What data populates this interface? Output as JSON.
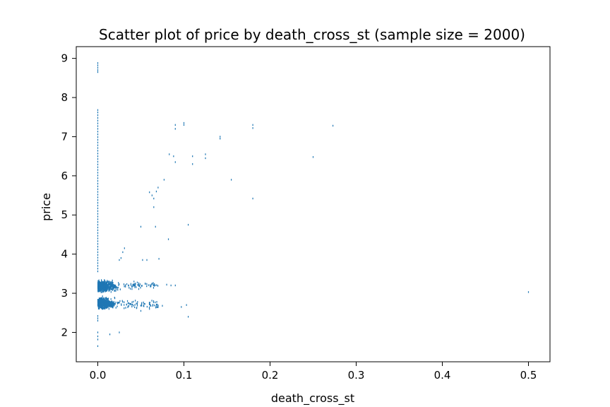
{
  "chart_data": {
    "type": "scatter",
    "title": "Scatter plot of price by death_cross_st (sample size = 2000)",
    "xlabel": "death_cross_st",
    "ylabel": "price",
    "xlim": [
      -0.025,
      0.525
    ],
    "ylim": [
      1.25,
      9.3
    ],
    "x_ticks": [
      0.0,
      0.1,
      0.2,
      0.3,
      0.4,
      0.5
    ],
    "x_tick_labels": [
      "0.0",
      "0.1",
      "0.2",
      "0.3",
      "0.4",
      "0.5"
    ],
    "y_ticks": [
      2,
      3,
      4,
      5,
      6,
      7,
      8,
      9
    ],
    "y_tick_labels": [
      "2",
      "3",
      "4",
      "5",
      "6",
      "7",
      "8",
      "9"
    ],
    "grid": false,
    "marker_color": "#1f77b4",
    "series": [
      {
        "values": [
          [
            0.0,
            8.88
          ],
          [
            0.0,
            8.82
          ],
          [
            0.0,
            8.76
          ],
          [
            0.0,
            8.7
          ],
          [
            0.0,
            8.65
          ],
          [
            0.0,
            7.68
          ],
          [
            0.0,
            7.62
          ],
          [
            0.0,
            7.55
          ],
          [
            0.0,
            7.48
          ],
          [
            0.0,
            7.41
          ],
          [
            0.0,
            7.34
          ],
          [
            0.0,
            7.27
          ],
          [
            0.0,
            7.2
          ],
          [
            0.0,
            7.13
          ],
          [
            0.0,
            7.06
          ],
          [
            0.0,
            6.99
          ],
          [
            0.0,
            6.92
          ],
          [
            0.0,
            6.85
          ],
          [
            0.0,
            6.78
          ],
          [
            0.0,
            6.71
          ],
          [
            0.0,
            6.64
          ],
          [
            0.0,
            6.57
          ],
          [
            0.0,
            6.5
          ],
          [
            0.0,
            6.43
          ],
          [
            0.0,
            6.36
          ],
          [
            0.0,
            6.29
          ],
          [
            0.0,
            6.22
          ],
          [
            0.0,
            6.15
          ],
          [
            0.0,
            6.08
          ],
          [
            0.0,
            6.01
          ],
          [
            0.0,
            5.94
          ],
          [
            0.0,
            5.87
          ],
          [
            0.0,
            5.8
          ],
          [
            0.0,
            5.73
          ],
          [
            0.0,
            5.66
          ],
          [
            0.0,
            5.59
          ],
          [
            0.0,
            5.52
          ],
          [
            0.0,
            5.45
          ],
          [
            0.0,
            5.38
          ],
          [
            0.0,
            5.31
          ],
          [
            0.0,
            5.24
          ],
          [
            0.0,
            5.17
          ],
          [
            0.0,
            5.1
          ],
          [
            0.0,
            5.03
          ],
          [
            0.0,
            4.96
          ],
          [
            0.0,
            4.89
          ],
          [
            0.0,
            4.82
          ],
          [
            0.0,
            4.75
          ],
          [
            0.0,
            4.68
          ],
          [
            0.0,
            4.61
          ],
          [
            0.0,
            4.54
          ],
          [
            0.0,
            4.47
          ],
          [
            0.0,
            4.4
          ],
          [
            0.0,
            4.33
          ],
          [
            0.0,
            4.26
          ],
          [
            0.0,
            4.19
          ],
          [
            0.0,
            4.12
          ],
          [
            0.0,
            4.05
          ],
          [
            0.0,
            3.98
          ],
          [
            0.0,
            3.91
          ],
          [
            0.0,
            3.84
          ],
          [
            0.0,
            3.77
          ],
          [
            0.0,
            3.7
          ],
          [
            0.0,
            3.63
          ],
          [
            0.0,
            3.56
          ],
          [
            0.0,
            2.42
          ],
          [
            0.0,
            2.36
          ],
          [
            0.0,
            2.3
          ],
          [
            0.0,
            2.0
          ],
          [
            0.0,
            1.9
          ],
          [
            0.0,
            1.82
          ],
          [
            0.0,
            1.65
          ],
          [
            0.014,
            1.95
          ],
          [
            0.025,
            2.0
          ],
          [
            0.025,
            3.85
          ],
          [
            0.027,
            3.9
          ],
          [
            0.029,
            4.05
          ],
          [
            0.031,
            4.15
          ],
          [
            0.05,
            4.7
          ],
          [
            0.052,
            3.85
          ],
          [
            0.057,
            3.85
          ],
          [
            0.06,
            5.58
          ],
          [
            0.063,
            5.5
          ],
          [
            0.065,
            5.42
          ],
          [
            0.065,
            5.2
          ],
          [
            0.067,
            4.7
          ],
          [
            0.068,
            5.6
          ],
          [
            0.07,
            5.7
          ],
          [
            0.071,
            3.88
          ],
          [
            0.077,
            5.9
          ],
          [
            0.082,
            4.38
          ],
          [
            0.083,
            6.55
          ],
          [
            0.088,
            6.5
          ],
          [
            0.09,
            7.3
          ],
          [
            0.09,
            7.2
          ],
          [
            0.09,
            6.35
          ],
          [
            0.1,
            7.35
          ],
          [
            0.1,
            7.3
          ],
          [
            0.105,
            4.75
          ],
          [
            0.11,
            6.5
          ],
          [
            0.11,
            6.3
          ],
          [
            0.125,
            6.55
          ],
          [
            0.125,
            6.45
          ],
          [
            0.142,
            7.0
          ],
          [
            0.142,
            6.95
          ],
          [
            0.155,
            5.9
          ],
          [
            0.18,
            7.3
          ],
          [
            0.18,
            7.22
          ],
          [
            0.18,
            5.42
          ],
          [
            0.25,
            6.48
          ],
          [
            0.273,
            7.28
          ],
          [
            0.5,
            3.03
          ],
          [
            0.097,
            2.65
          ],
          [
            0.103,
            2.7
          ],
          [
            0.105,
            2.4
          ],
          [
            0.09,
            3.2
          ],
          [
            0.085,
            3.2
          ],
          [
            0.08,
            3.22
          ],
          [
            0.075,
            2.68
          ],
          [
            0.07,
            2.65
          ],
          [
            0.065,
            3.2
          ],
          [
            0.06,
            2.6
          ],
          [
            0.055,
            3.25
          ],
          [
            0.05,
            2.55
          ],
          [
            0.045,
            2.62
          ],
          [
            0.042,
            3.3
          ]
        ]
      }
    ]
  }
}
